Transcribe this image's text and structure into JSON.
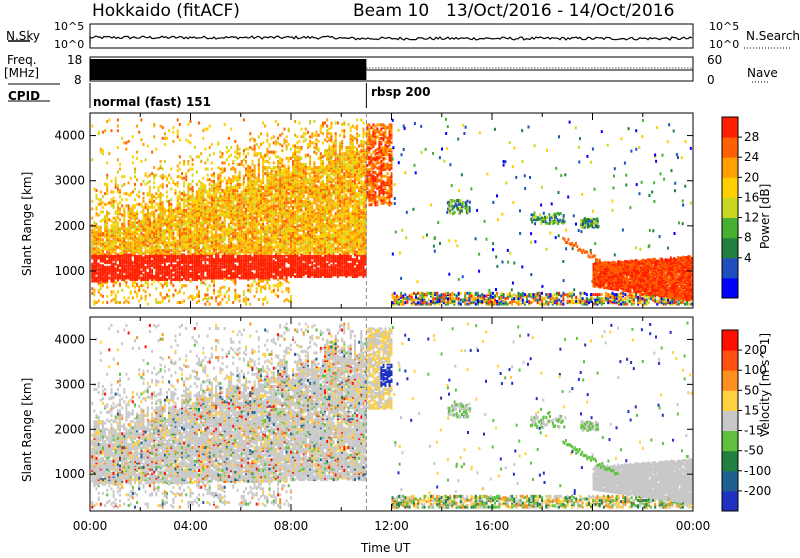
{
  "header": {
    "station": "Hokkaido (fitACF)",
    "beam": "Beam 10",
    "dates": "13/Oct/2016 - 14/Oct/2016"
  },
  "strips": {
    "nsky_label": "N.Sky",
    "nsky_ticks": [
      "10^5",
      "10^0"
    ],
    "nsearch_label": "N.Search",
    "nsearch_ticks": [
      "10^5",
      "10^0"
    ],
    "freq_label": "Freq.",
    "freq_unit": "[MHz]",
    "freq_ticks": [
      "18",
      "8"
    ],
    "nave_label": "Nave",
    "nave_ticks": [
      "60",
      "0"
    ],
    "cpid_label": "CPID",
    "cpid_modes": [
      {
        "name": "normal (fast) 151",
        "start_hour": 0,
        "end_hour": 11
      },
      {
        "name": "rbsp 200",
        "start_hour": 11,
        "end_hour": 24
      }
    ]
  },
  "chart_data": [
    {
      "type": "heatmap",
      "name": "Power",
      "ylabel": "Slant Range [km]",
      "xlabel": "",
      "x_range_hours": [
        0,
        24
      ],
      "ylim": [
        180,
        4500
      ],
      "y_ticks": [
        1000,
        2000,
        3000,
        4000
      ],
      "colorbar_label": "Power [dB]",
      "colorbar_ticks": [
        "28",
        "24",
        "20",
        "16",
        "12",
        "8",
        "4"
      ],
      "colorbar_colors": [
        "#0000ff",
        "#1f4fbf",
        "#208040",
        "#48b030",
        "#c8d820",
        "#ffd000",
        "#ffa000",
        "#ff6000",
        "#ff2000"
      ]
    },
    {
      "type": "heatmap",
      "name": "Velocity",
      "ylabel": "Slant Range [km]",
      "xlabel": "Time UT",
      "x_range_hours": [
        0,
        24
      ],
      "x_tick_labels": [
        "00:00",
        "04:00",
        "08:00",
        "12:00",
        "16:00",
        "20:00",
        "00:00"
      ],
      "ylim": [
        180,
        4500
      ],
      "y_ticks": [
        1000,
        2000,
        3000,
        4000
      ],
      "colorbar_label": "Velocity [m s^-1]",
      "colorbar_ticks": [
        "200",
        "100",
        "50",
        "15",
        "-15",
        "-50",
        "-100",
        "-200"
      ],
      "colorbar_colors": [
        "#2030c0",
        "#206090",
        "#208040",
        "#60c040",
        "#c8c8c8",
        "#ffd040",
        "#ff9020",
        "#ff5010",
        "#ff1000"
      ]
    }
  ]
}
